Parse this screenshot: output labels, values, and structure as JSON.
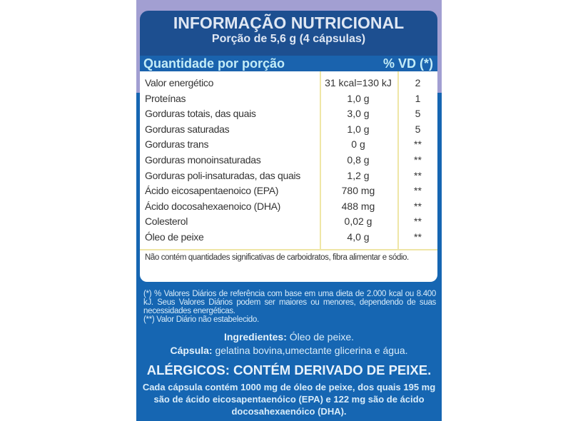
{
  "header": {
    "title": "INFORMAÇÃO NUTRICIONAL",
    "serving": "Porção de 5,6 g (4 cápsulas)",
    "qty_label": "Quantidade por porção",
    "vd_label": "% VD (*)"
  },
  "rows": [
    {
      "label": "Valor energético",
      "amount": "31 kcal=130 kJ",
      "vd": "2"
    },
    {
      "label": "Proteínas",
      "amount": "1,0 g",
      "vd": "1"
    },
    {
      "label": "Gorduras totais, das quais",
      "amount": "3,0 g",
      "vd": "5"
    },
    {
      "label": "Gorduras saturadas",
      "amount": "1,0 g",
      "vd": "5"
    },
    {
      "label": "Gorduras trans",
      "amount": "0 g",
      "vd": "**"
    },
    {
      "label": "Gorduras monoinsaturadas",
      "amount": "0,8 g",
      "vd": "**"
    },
    {
      "label": "Gorduras poli-insaturadas, das quais",
      "amount": "1,2 g",
      "vd": "**"
    },
    {
      "label": "Ácido eicosapentaenoico (EPA)",
      "amount": "780 mg",
      "vd": "**"
    },
    {
      "label": "Ácido docosahexaenoico (DHA)",
      "amount": "488 mg",
      "vd": "**"
    },
    {
      "label": "Colesterol",
      "amount": "0,02 g",
      "vd": "**"
    },
    {
      "label": "Óleo de peixe",
      "amount": "4,0 g",
      "vd": "**"
    }
  ],
  "table_note": "Não contém quantidades significativas de carboidratos, fibra alimentar e sódio.",
  "footnotes": {
    "vd": "(*) % Valores Diários de referência com base em uma dieta de 2.000 kcal ou 8.400 kJ. Seus Valores Diários podem ser maiores ou menores, dependendo de suas necessidades energéticas.",
    "not_established": "(**) Valor Diário não estabelecido."
  },
  "ingredients": {
    "label": "Ingredientes:",
    "value": "Óleo de peixe.",
    "capsule_label": "Cápsula:",
    "capsule_value": "gelatina bovina,umectante glicerina e água."
  },
  "allergens": "ALÉRGICOS: CONTÉM DERIVADO DE PEIXE.",
  "composition": "Cada cápsula contém 1000 mg de óleo de peixe, dos quais 195 mg são de ácido eicosapentaenóico (EPA) e 122 mg são de ácido docosahexaenóico (DHA).",
  "colors": {
    "panel_blue": "#1666b2",
    "header_navy": "#1d4f90",
    "top_purple": "#a29fd2",
    "column_lines": "#efe6a6"
  }
}
